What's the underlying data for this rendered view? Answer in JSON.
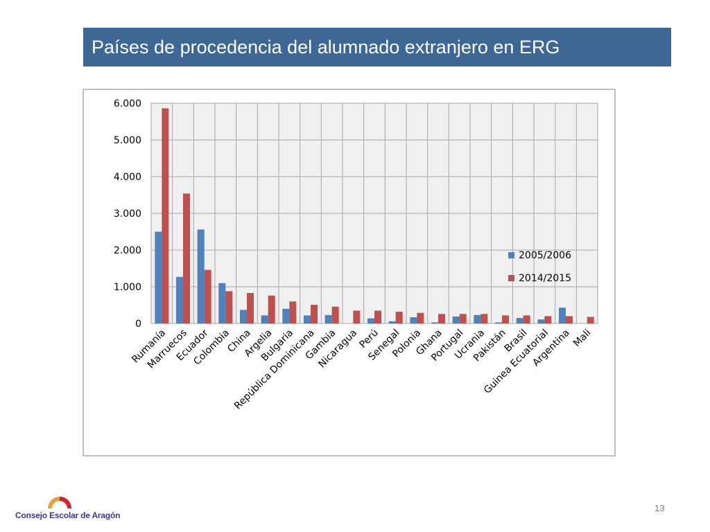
{
  "title": "Países de procedencia del alumnado extranjero en ERG",
  "page_number": "13",
  "logo_text": "Consejo Escolar de Aragón",
  "colors": {
    "series1": "#4f81bd",
    "series2": "#c0504d",
    "title_bg": "#3f6796",
    "plot_bg": "#f0f0f0",
    "grid": "#a6a6a6"
  },
  "chart_data": {
    "type": "bar",
    "title": "",
    "xlabel": "",
    "ylabel": "",
    "ylim": [
      0,
      6000
    ],
    "yticks": [
      0,
      1000,
      2000,
      3000,
      4000,
      5000,
      6000
    ],
    "ytick_labels": [
      "0",
      "1.000",
      "2.000",
      "3.000",
      "4.000",
      "5.000",
      "6.000"
    ],
    "grid": true,
    "legend_position": "right",
    "categories": [
      "Rumanía",
      "Marruecos",
      "Ecuador",
      "Colombia",
      "China",
      "Argelia",
      "Bulgaria",
      "República Dominicana",
      "Gambia",
      "Nicaragua",
      "Perú",
      "Senegal",
      "Polonia",
      "Ghana",
      "Portugal",
      "Ucrania",
      "Pakistán",
      "Brasil",
      "Guinea Ecuatorial",
      "Argentina",
      "Mali"
    ],
    "series": [
      {
        "name": "2005/2006",
        "values": [
          2500,
          1270,
          2560,
          1100,
          370,
          220,
          400,
          220,
          230,
          0,
          140,
          60,
          170,
          30,
          190,
          230,
          30,
          150,
          110,
          430,
          0
        ]
      },
      {
        "name": "2014/2015",
        "values": [
          5860,
          3540,
          1460,
          880,
          830,
          760,
          600,
          510,
          460,
          350,
          350,
          320,
          290,
          260,
          260,
          260,
          220,
          220,
          200,
          200,
          180
        ]
      }
    ]
  }
}
